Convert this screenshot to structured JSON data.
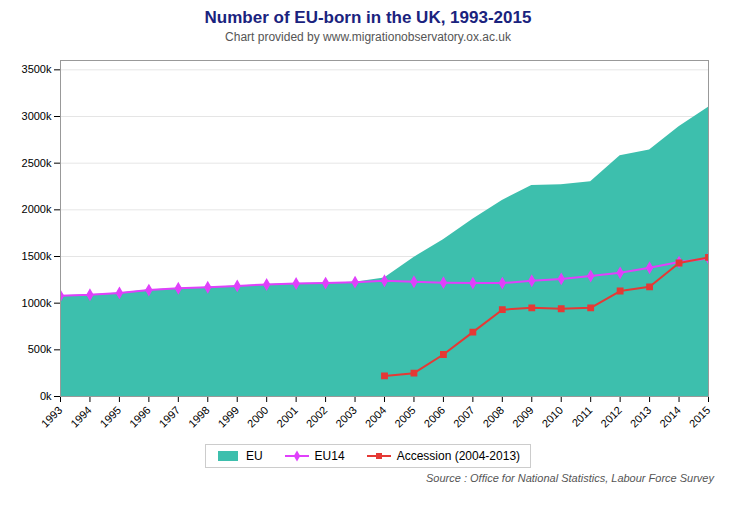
{
  "chart_data": {
    "type": "line",
    "title": "Number of EU-born in the UK, 1993-2015",
    "subtitle": "Chart provided by www.migrationobservatory.ox.ac.uk",
    "annotations": [
      "Source : Office for National Statistics, Labour Force Survey"
    ],
    "x": [
      1993,
      1994,
      1995,
      1996,
      1997,
      1998,
      1999,
      2000,
      2001,
      2002,
      2003,
      2004,
      2005,
      2006,
      2007,
      2008,
      2009,
      2010,
      2011,
      2012,
      2013,
      2014,
      2015
    ],
    "series": [
      {
        "name": "EU",
        "type": "area",
        "color": "#3dbfad",
        "values": [
          1080000,
          1090000,
          1110000,
          1140000,
          1160000,
          1170000,
          1185000,
          1200000,
          1210000,
          1215000,
          1225000,
          1270000,
          1490000,
          1680000,
          1900000,
          2100000,
          2260000,
          2270000,
          2300000,
          2580000,
          2640000,
          2890000,
          3100000
        ]
      },
      {
        "name": "EU14",
        "type": "line",
        "color": "#e040fb",
        "marker": "diamond",
        "values": [
          1080000,
          1090000,
          1110000,
          1140000,
          1160000,
          1170000,
          1185000,
          1200000,
          1210000,
          1215000,
          1225000,
          1240000,
          1230000,
          1220000,
          1215000,
          1215000,
          1240000,
          1260000,
          1290000,
          1325000,
          1380000,
          1440000,
          1480000
        ]
      },
      {
        "name": "Accession (2004-2013)",
        "type": "line",
        "color": "#e53935",
        "marker": "square",
        "values": [
          null,
          null,
          null,
          null,
          null,
          null,
          null,
          null,
          null,
          null,
          null,
          220000,
          250000,
          450000,
          690000,
          930000,
          950000,
          940000,
          950000,
          1130000,
          1175000,
          1430000,
          1490000
        ]
      }
    ],
    "xlim": [
      1993,
      2015
    ],
    "xticks": [
      1993,
      1994,
      1995,
      1996,
      1997,
      1998,
      1999,
      2000,
      2001,
      2002,
      2003,
      2004,
      2005,
      2006,
      2007,
      2008,
      2009,
      2010,
      2011,
      2012,
      2013,
      2014,
      2015
    ],
    "ylim": [
      0,
      3600000
    ],
    "yticks": [
      {
        "value": 0,
        "label": "0k"
      },
      {
        "value": 500000,
        "label": "500k"
      },
      {
        "value": 1000000,
        "label": "1000k"
      },
      {
        "value": 1500000,
        "label": "1500k"
      },
      {
        "value": 2000000,
        "label": "2000k"
      },
      {
        "value": 2500000,
        "label": "2500k"
      },
      {
        "value": 3000000,
        "label": "3000k"
      },
      {
        "value": 3500000,
        "label": "3500k"
      }
    ],
    "grid": true,
    "legend": "bottom"
  }
}
